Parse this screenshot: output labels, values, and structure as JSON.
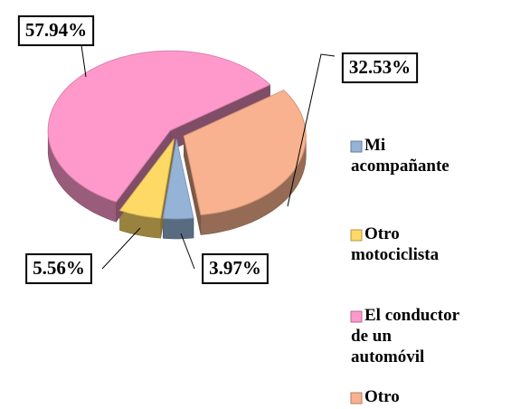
{
  "chart_data": {
    "type": "pie",
    "categories": [
      "Mi acompañante",
      "Otro motociclista",
      "El conductor de un automóvil",
      "Otro"
    ],
    "values": [
      3.97,
      5.56,
      57.94,
      32.53
    ],
    "value_labels": [
      "3.97%",
      "5.56%",
      "57.94%",
      "32.53%"
    ],
    "colors": [
      "#95b3d7",
      "#ffd966",
      "#ff99cc",
      "#f9b28f"
    ],
    "legend": "right"
  }
}
